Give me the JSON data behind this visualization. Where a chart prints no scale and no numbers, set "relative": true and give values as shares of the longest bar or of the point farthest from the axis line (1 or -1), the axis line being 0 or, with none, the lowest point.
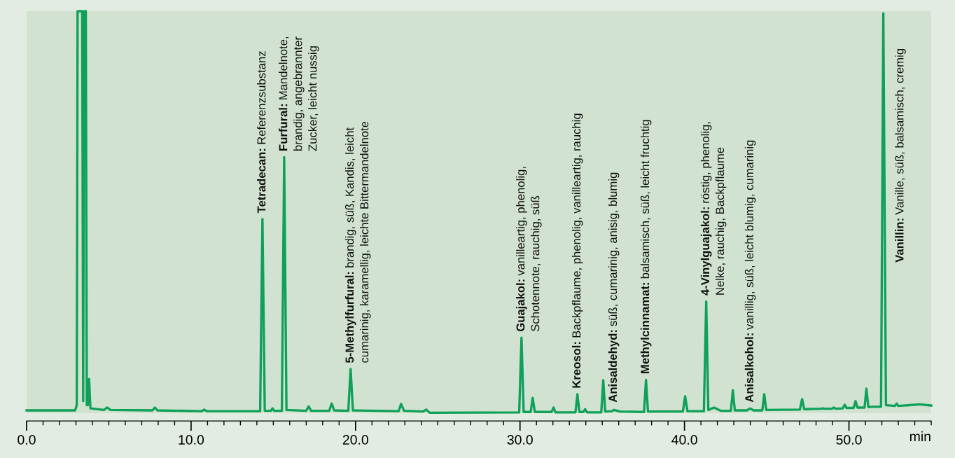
{
  "chart_data": {
    "type": "line",
    "relative": true,
    "xlabel": "min",
    "xlim": [
      0,
      55
    ],
    "xticks": [
      {
        "value": 0,
        "label": "0.0"
      },
      {
        "value": 10,
        "label": "10.0"
      },
      {
        "value": 20,
        "label": "20.0"
      },
      {
        "value": 30,
        "label": "30.0"
      },
      {
        "value": 40,
        "label": "40.0"
      },
      {
        "value": 50,
        "label": "50.0"
      }
    ],
    "grid": false,
    "legend": false,
    "marker": "none",
    "line_style": "solid",
    "tick_labels": "x",
    "series": [
      {
        "color": "#0fa05a",
        "x": [
          0,
          2.95,
          3.05,
          3.1,
          3.38,
          3.44,
          3.5,
          3.6,
          3.66,
          3.72,
          3.8,
          3.88,
          4.7,
          4.9,
          5.1,
          7.65,
          7.8,
          7.95,
          10.65,
          10.8,
          10.95,
          14.2,
          14.34,
          14.48,
          14.85,
          14.95,
          15.05,
          15.52,
          15.66,
          15.8,
          17.0,
          17.15,
          17.3,
          18.4,
          18.55,
          18.7,
          19.56,
          19.7,
          19.84,
          22.62,
          22.77,
          22.95,
          24.1,
          24.3,
          24.5,
          29.95,
          30.09,
          30.22,
          30.65,
          30.77,
          30.9,
          31.92,
          32.04,
          32.16,
          33.37,
          33.49,
          33.61,
          33.85,
          33.96,
          34.08,
          34.94,
          35.06,
          35.18,
          35.6,
          35.7,
          36.1,
          37.54,
          37.66,
          37.78,
          39.9,
          40.04,
          40.18,
          41.18,
          41.32,
          41.45,
          41.8,
          42.2,
          42.82,
          42.94,
          43.06,
          43.8,
          44.0,
          44.2,
          44.73,
          44.85,
          44.97,
          47.02,
          47.15,
          47.28,
          48.3,
          48.4,
          48.5,
          48.95,
          49.08,
          49.2,
          49.62,
          49.74,
          49.86,
          50.28,
          50.4,
          50.52,
          50.95,
          51.06,
          51.18,
          51.4,
          51.95,
          52.09,
          52.25,
          52.8,
          52.9,
          53.0,
          53.3,
          53.7,
          54.3,
          55
        ],
        "values": [
          0.007,
          0.007,
          0.02,
          1,
          1,
          0.03,
          1,
          1,
          0.02,
          0.02,
          0.085,
          0.012,
          0.008,
          0.014,
          0.008,
          0.007,
          0.014,
          0.007,
          0.005,
          0.009,
          0.005,
          0.005,
          0.483,
          0.006,
          0.006,
          0.012,
          0.006,
          0.006,
          0.637,
          0.008,
          0.006,
          0.017,
          0.006,
          0.006,
          0.024,
          0.007,
          0.006,
          0.11,
          0.007,
          0.005,
          0.023,
          0.006,
          0.004,
          0.009,
          0.001,
          0.002,
          0.188,
          0.003,
          0.003,
          0.038,
          0.003,
          0.003,
          0.014,
          0.002,
          0.002,
          0.047,
          0.003,
          0.003,
          0.01,
          0.002,
          0.002,
          0.082,
          0.004,
          0.005,
          0.008,
          0.004,
          0.003,
          0.083,
          0.004,
          0.004,
          0.042,
          0.005,
          0.005,
          0.278,
          0.008,
          0.014,
          0.006,
          0.006,
          0.057,
          0.007,
          0.007,
          0.012,
          0.007,
          0.007,
          0.047,
          0.008,
          0.009,
          0.035,
          0.01,
          0.011,
          0.012,
          0.011,
          0.011,
          0.014,
          0.011,
          0.012,
          0.021,
          0.013,
          0.013,
          0.03,
          0.014,
          0.014,
          0.061,
          0.015,
          0.016,
          0.016,
          0.995,
          0.02,
          0.018,
          0.024,
          0.018,
          0.019,
          0.02,
          0.022,
          0.019
        ]
      }
    ],
    "annotations": [
      {
        "text": "Tetradecan: Referenzsubstanz",
        "x": 14.34,
        "y": 0.483
      },
      {
        "text": "Furfural: Mandelnote,\nbrandig, angebrannter\nZucker, leicht nussig",
        "x": 15.66,
        "y": 0.637
      },
      {
        "text": "5-Methylfurfural: brandig, süß, Kandis, leicht\ncumarinig, karamellig, leichte Bittermandelnote",
        "x": 19.7,
        "y": 0.11
      },
      {
        "text": "Guajakol: vanilleartig, phenolig,\nSchotennote, rauchig, süß",
        "x": 30.09,
        "y": 0.188
      },
      {
        "text": "Kreosol: Backpflaume, phenolig, vanilleartig, rauchig",
        "x": 33.49,
        "y": 0.047
      },
      {
        "text": "Anisaldehyd: süß, cumarinig, anisig, blumig",
        "x": 35.7,
        "y": 0.012
      },
      {
        "text": "Methylcinnamat: balsamisch, süß, leicht fruchtig",
        "x": 37.66,
        "y": 0.083
      },
      {
        "text": "4-Vinylguajakol: röstig, phenolig,\nNelke, rauchig, Backpflaume",
        "x": 41.32,
        "y": 0.278
      },
      {
        "text": "Anisalkohol: vanillig, süß, leicht blumig, cumarinig",
        "x": 44.0,
        "y": 0.012
      },
      "Vanillin: Vanille, süß, balsamisch, cremig"
    ]
  }
}
